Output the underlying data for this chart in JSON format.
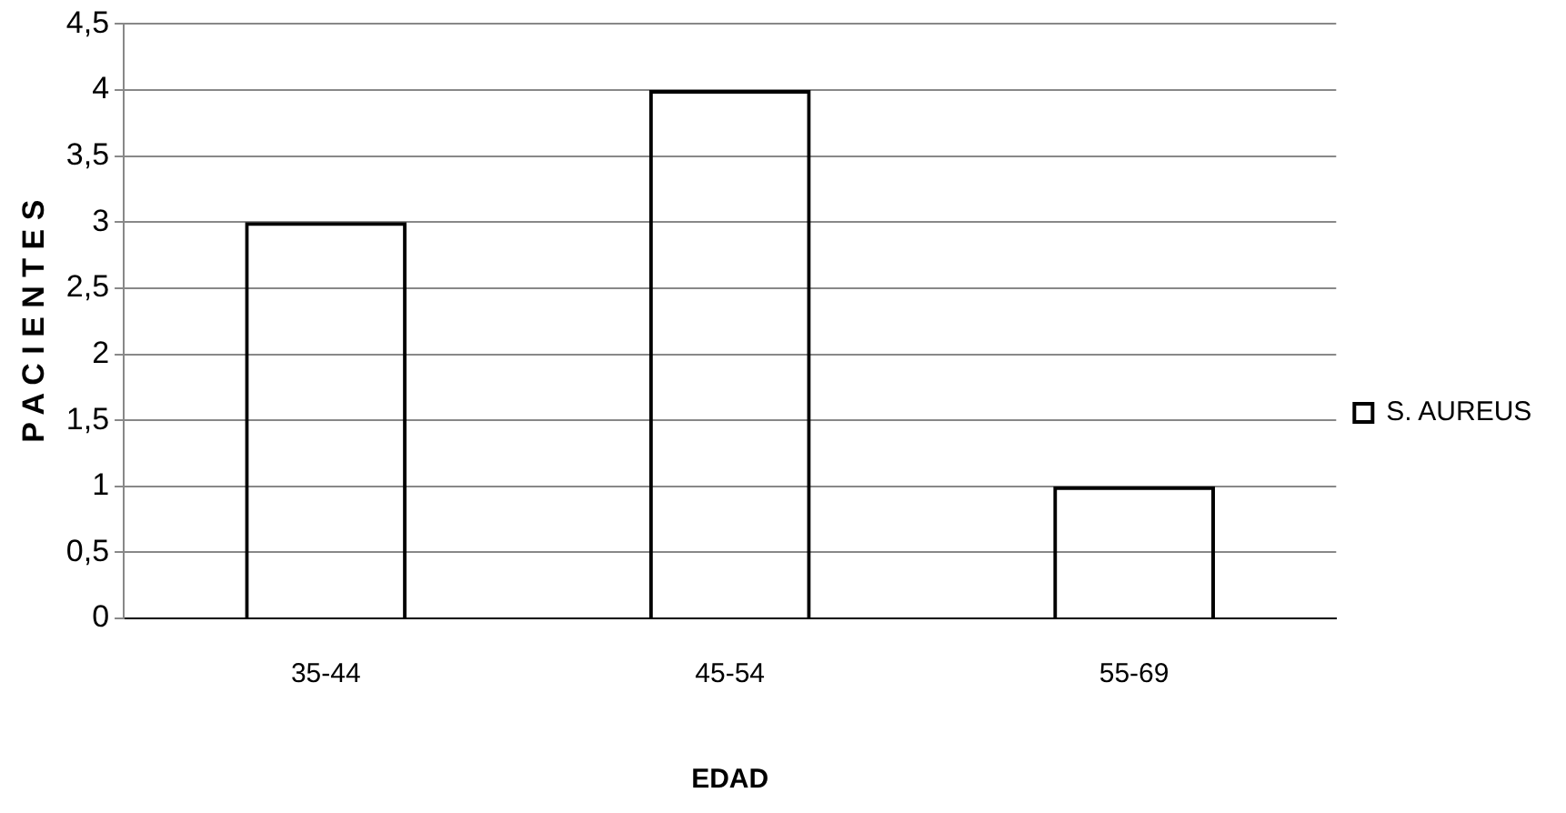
{
  "chart_data": {
    "type": "bar",
    "xlabel": "EDAD",
    "ylabel": "P A C I E N T E S",
    "categories": [
      "35-44",
      "45-54",
      "55-69"
    ],
    "series": [
      {
        "name": "S. AUREUS",
        "color": "#000000",
        "values": [
          3,
          4,
          1
        ]
      }
    ],
    "ylim": [
      0,
      4.5
    ],
    "yticks": [
      0,
      {
        "value": 0.5,
        "label": "0,5"
      },
      1,
      {
        "value": 1.5,
        "label": "1,5"
      },
      2,
      {
        "value": 2.5,
        "label": "2,5"
      },
      3,
      {
        "value": 3.5,
        "label": "3,5"
      },
      4,
      {
        "value": 4.5,
        "label": "4,5"
      }
    ],
    "grid": "y",
    "legend": "right"
  }
}
